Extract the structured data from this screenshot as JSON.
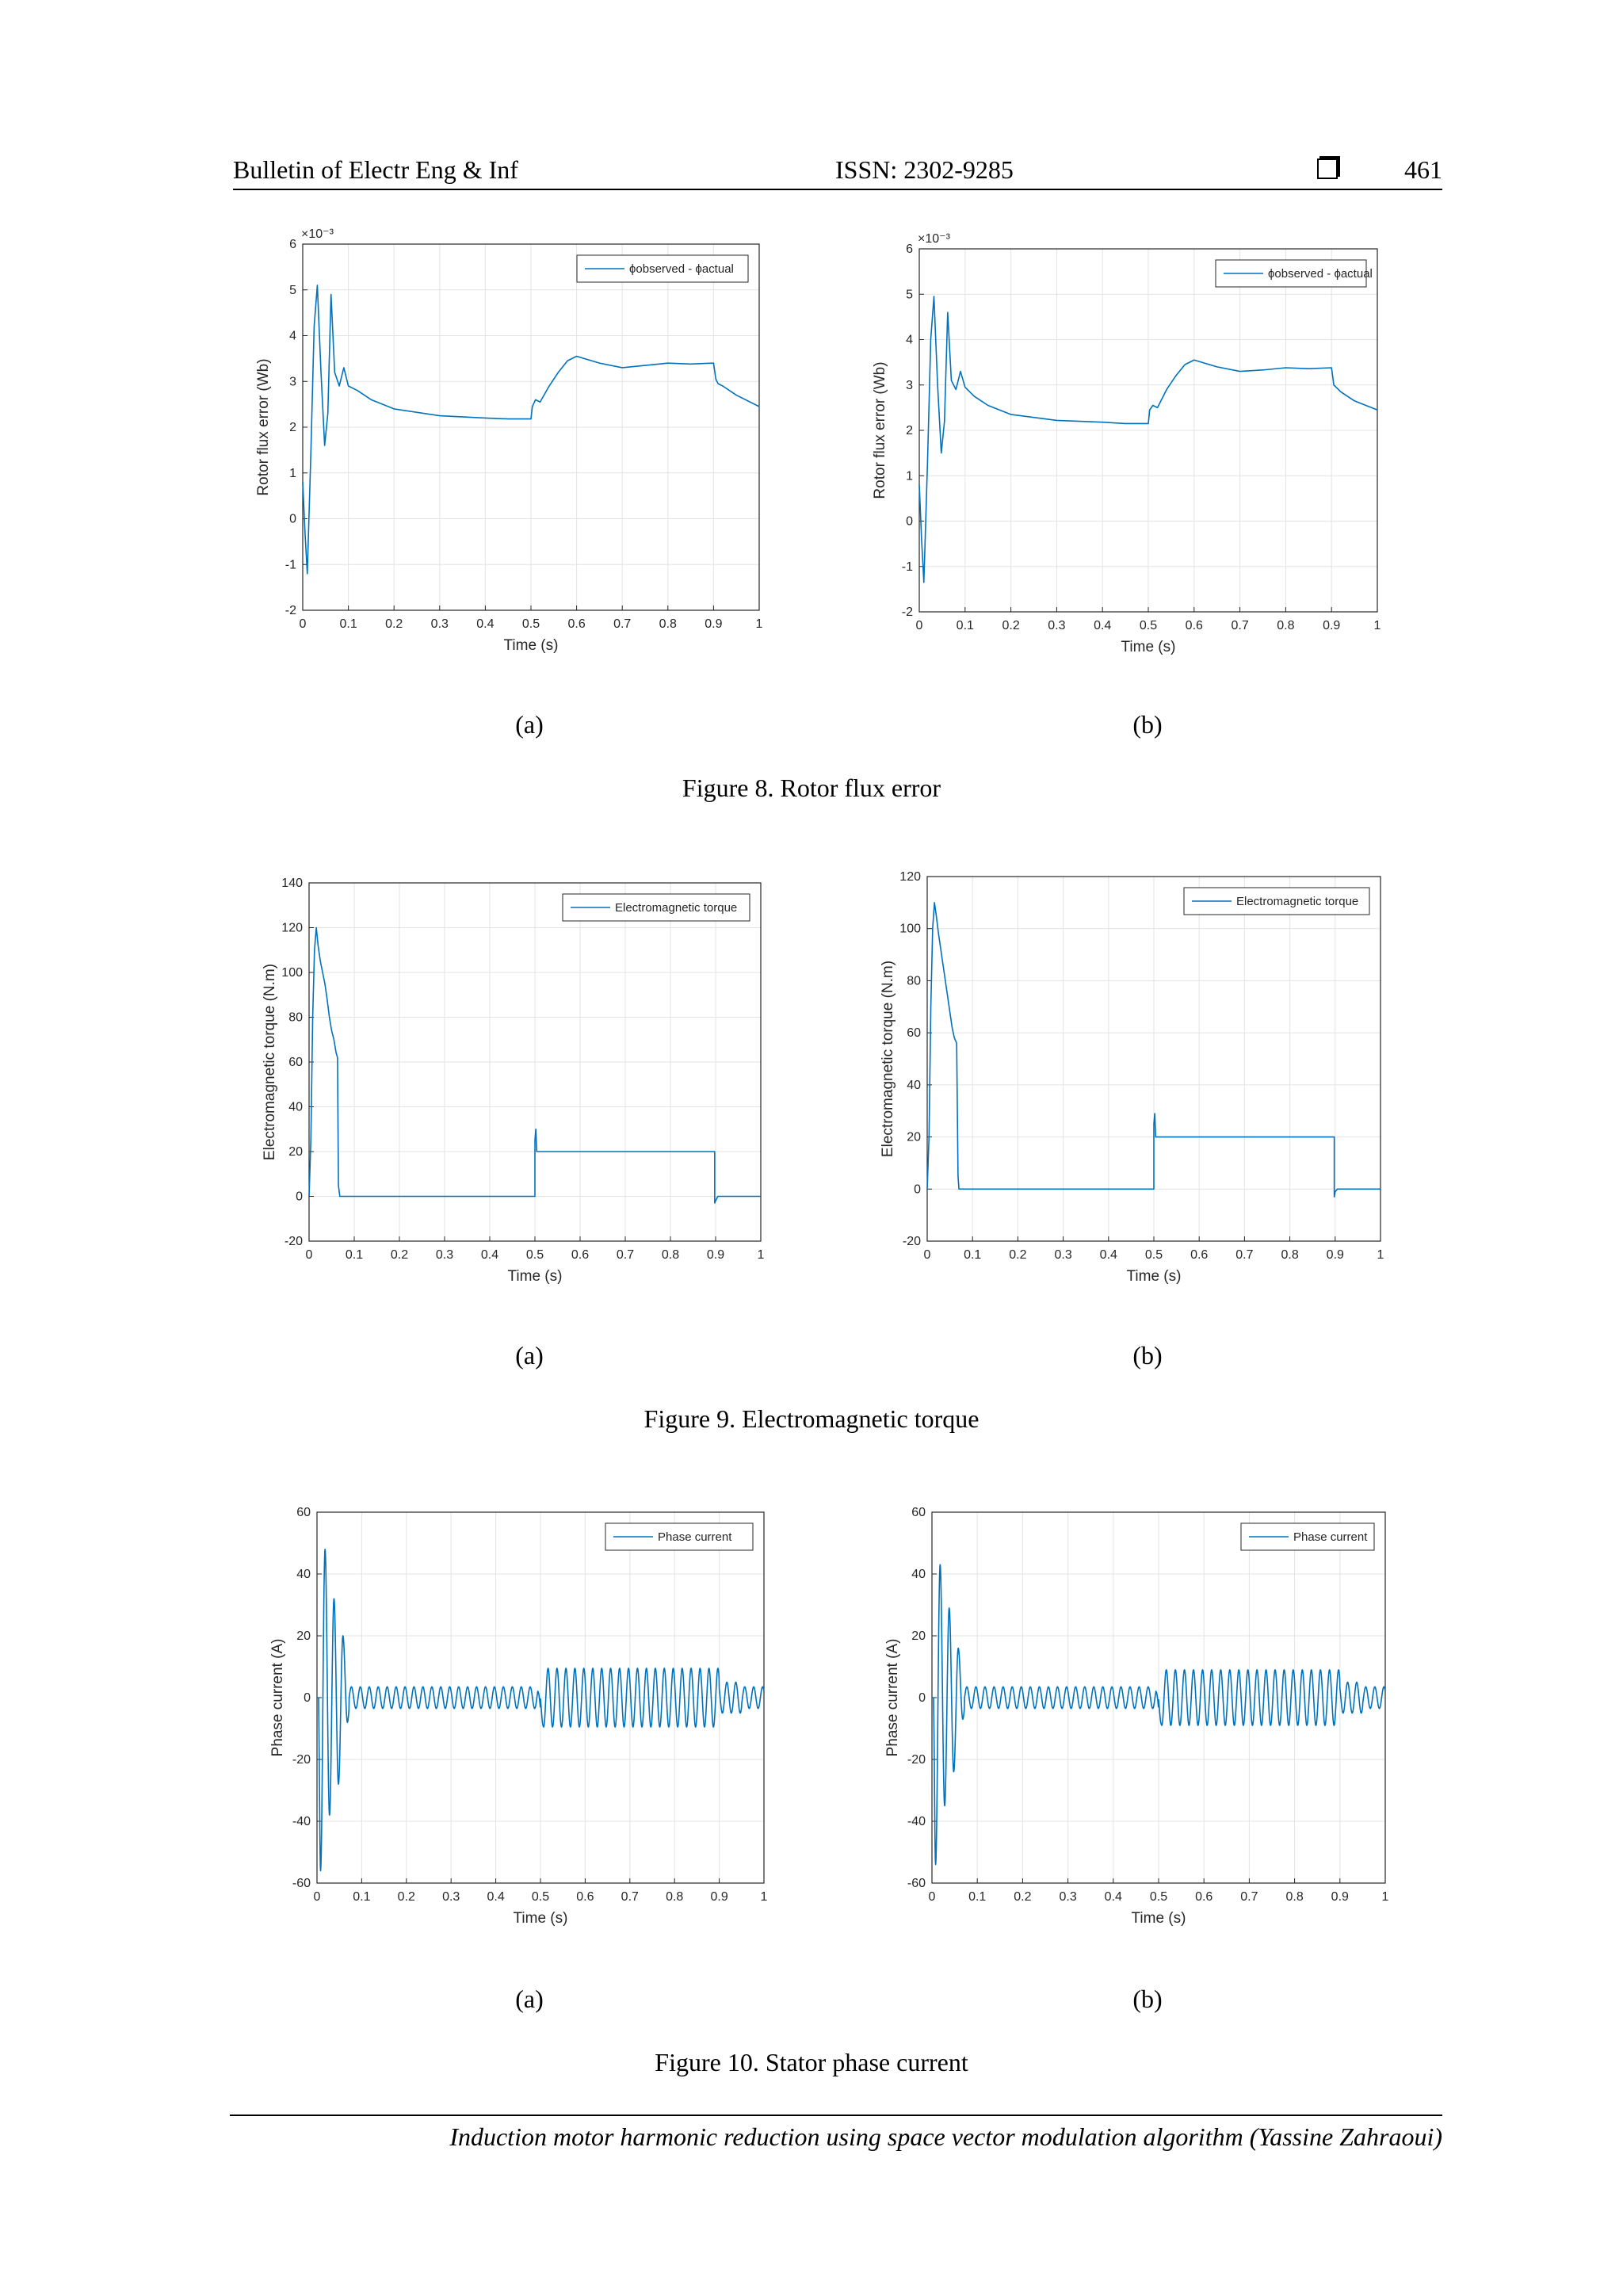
{
  "header": {
    "journal": "Bulletin of Electr Eng & Inf",
    "issn": "ISSN: 2302-9285",
    "page": "461"
  },
  "footer": {
    "text": "Induction motor harmonic reduction using space vector modulation algorithm (Yassine Zahraoui)"
  },
  "figures": [
    {
      "caption": "Figure 8. Rotor flux error",
      "sub_a": "(a)",
      "sub_b": "(b)"
    },
    {
      "caption": "Figure 9. Electromagnetic torque",
      "sub_a": "(a)",
      "sub_b": "(b)"
    },
    {
      "caption": "Figure 10. Stator phase current",
      "sub_a": "(a)",
      "sub_b": "(b)"
    }
  ],
  "colors": {
    "line": "#0072BD",
    "grid": "#e3e3e3",
    "axis": "#262626"
  },
  "chart_data": [
    {
      "id": "fig8a",
      "type": "line",
      "xlabel": "Time (s)",
      "ylabel": "Rotor flux error (Wb)",
      "xlim": [
        0,
        1
      ],
      "ylim": [
        -2,
        6
      ],
      "y_multiplier": "×10⁻³",
      "legend": "ϕobserved - ϕactual",
      "legend_loc": "top-right",
      "x_ticks": [
        "0",
        "0.1",
        "0.2",
        "0.3",
        "0.4",
        "0.5",
        "0.6",
        "0.7",
        "0.8",
        "0.9",
        "1"
      ],
      "y_ticks": [
        "-2",
        "-1",
        "0",
        "1",
        "2",
        "3",
        "4",
        "5",
        "6"
      ],
      "x": [
        0,
        0.005,
        0.01,
        0.018,
        0.025,
        0.032,
        0.04,
        0.048,
        0.055,
        0.062,
        0.07,
        0.08,
        0.09,
        0.1,
        0.12,
        0.15,
        0.2,
        0.3,
        0.4,
        0.45,
        0.5,
        0.503,
        0.51,
        0.52,
        0.54,
        0.56,
        0.58,
        0.6,
        0.65,
        0.7,
        0.75,
        0.8,
        0.85,
        0.9,
        0.905,
        0.91,
        0.92,
        0.95,
        1
      ],
      "y": [
        0.8,
        -0.3,
        -1.2,
        1.5,
        4.2,
        5.1,
        3.2,
        1.6,
        2.3,
        4.9,
        3.2,
        2.9,
        3.3,
        2.9,
        2.8,
        2.6,
        2.4,
        2.25,
        2.2,
        2.18,
        2.18,
        2.45,
        2.6,
        2.55,
        2.9,
        3.2,
        3.45,
        3.55,
        3.4,
        3.3,
        3.35,
        3.4,
        3.38,
        3.4,
        3.05,
        2.95,
        2.9,
        2.7,
        2.45
      ]
    },
    {
      "id": "fig8b",
      "type": "line",
      "xlabel": "Time (s)",
      "ylabel": "Rotor flux error (Wb)",
      "xlim": [
        0,
        1
      ],
      "ylim": [
        -2,
        6
      ],
      "y_multiplier": "×10⁻³",
      "legend": "ϕobserved - ϕactual",
      "legend_loc": "top-right",
      "x_ticks": [
        "0",
        "0.1",
        "0.2",
        "0.3",
        "0.4",
        "0.5",
        "0.6",
        "0.7",
        "0.8",
        "0.9",
        "1"
      ],
      "y_ticks": [
        "-2",
        "-1",
        "0",
        "1",
        "2",
        "3",
        "4",
        "5",
        "6"
      ],
      "x": [
        0,
        0.005,
        0.01,
        0.018,
        0.025,
        0.032,
        0.04,
        0.048,
        0.055,
        0.062,
        0.07,
        0.08,
        0.09,
        0.1,
        0.12,
        0.15,
        0.2,
        0.3,
        0.4,
        0.45,
        0.5,
        0.503,
        0.51,
        0.52,
        0.54,
        0.56,
        0.58,
        0.6,
        0.65,
        0.7,
        0.75,
        0.8,
        0.85,
        0.9,
        0.905,
        0.91,
        0.92,
        0.95,
        1
      ],
      "y": [
        0.8,
        -0.4,
        -1.35,
        1.3,
        4.0,
        4.95,
        3.0,
        1.5,
        2.2,
        4.6,
        3.1,
        2.9,
        3.3,
        2.95,
        2.75,
        2.55,
        2.35,
        2.22,
        2.18,
        2.15,
        2.15,
        2.45,
        2.55,
        2.5,
        2.9,
        3.2,
        3.45,
        3.55,
        3.4,
        3.3,
        3.33,
        3.38,
        3.36,
        3.38,
        3.0,
        2.95,
        2.85,
        2.65,
        2.45
      ]
    },
    {
      "id": "fig9a",
      "type": "line",
      "xlabel": "Time (s)",
      "ylabel": "Electromagnetic torque (N.m)",
      "xlim": [
        0,
        1
      ],
      "ylim": [
        -20,
        140
      ],
      "legend": "Electromagnetic torque",
      "legend_loc": "top-right",
      "x_ticks": [
        "0",
        "0.1",
        "0.2",
        "0.3",
        "0.4",
        "0.5",
        "0.6",
        "0.7",
        "0.8",
        "0.9",
        "1"
      ],
      "y_ticks": [
        "-20",
        "0",
        "20",
        "40",
        "60",
        "80",
        "100",
        "120",
        "140"
      ],
      "x": [
        0,
        0.004,
        0.008,
        0.012,
        0.016,
        0.02,
        0.025,
        0.03,
        0.035,
        0.04,
        0.045,
        0.05,
        0.055,
        0.06,
        0.063,
        0.065,
        0.068,
        0.1,
        0.3,
        0.5,
        0.5,
        0.502,
        0.504,
        0.51,
        0.6,
        0.7,
        0.8,
        0.898,
        0.898,
        0.9,
        0.905,
        1
      ],
      "y": [
        0,
        25,
        80,
        110,
        120,
        112,
        105,
        100,
        95,
        88,
        80,
        74,
        70,
        64,
        62,
        5,
        0,
        0,
        0,
        0,
        25,
        30,
        20,
        20,
        20,
        20,
        20,
        20,
        -3,
        -2,
        0,
        0
      ]
    },
    {
      "id": "fig9b",
      "type": "line",
      "xlabel": "Time (s)",
      "ylabel": "Electromagnetic torque (N.m)",
      "xlim": [
        0,
        1
      ],
      "ylim": [
        -20,
        120
      ],
      "legend": "Electromagnetic torque",
      "legend_loc": "top-right",
      "x_ticks": [
        "0",
        "0.1",
        "0.2",
        "0.3",
        "0.4",
        "0.5",
        "0.6",
        "0.7",
        "0.8",
        "0.9",
        "1"
      ],
      "y_ticks": [
        "-20",
        "0",
        "20",
        "40",
        "60",
        "80",
        "100",
        "120"
      ],
      "x": [
        0,
        0.004,
        0.008,
        0.012,
        0.016,
        0.02,
        0.025,
        0.03,
        0.035,
        0.04,
        0.045,
        0.05,
        0.055,
        0.06,
        0.065,
        0.068,
        0.07,
        0.1,
        0.3,
        0.5,
        0.5,
        0.502,
        0.504,
        0.51,
        0.6,
        0.7,
        0.8,
        0.898,
        0.898,
        0.9,
        0.905,
        1
      ],
      "y": [
        0,
        20,
        70,
        100,
        110,
        105,
        98,
        92,
        86,
        80,
        74,
        68,
        62,
        58,
        56,
        5,
        0,
        0,
        0,
        0,
        25,
        29,
        20,
        20,
        20,
        20,
        20,
        20,
        -3,
        -1,
        0,
        0
      ]
    },
    {
      "id": "fig10a",
      "type": "line",
      "xlabel": "Time (s)",
      "ylabel": "Phase current (A)",
      "xlim": [
        0,
        1
      ],
      "ylim": [
        -60,
        60
      ],
      "legend": "Phase current",
      "legend_loc": "top-right",
      "x_ticks": [
        "0",
        "0.1",
        "0.2",
        "0.3",
        "0.4",
        "0.5",
        "0.6",
        "0.7",
        "0.8",
        "0.9",
        "1"
      ],
      "y_ticks": [
        "-60",
        "-40",
        "-20",
        "0",
        "20",
        "40",
        "60"
      ],
      "signal": {
        "period": 0.02,
        "onsets": [
          [
            0.008,
            -56
          ],
          [
            0.018,
            48
          ],
          [
            0.028,
            -38
          ],
          [
            0.038,
            32
          ],
          [
            0.048,
            -28
          ],
          [
            0.058,
            20
          ],
          [
            0.068,
            -8
          ]
        ],
        "amp_low": 3.5,
        "amp_high": 9.5,
        "t_high_start": 0.5,
        "t_high_end": 0.9,
        "n": 2000
      }
    },
    {
      "id": "fig10b",
      "type": "line",
      "xlabel": "Time (s)",
      "ylabel": "Phase current (A)",
      "xlim": [
        0,
        1
      ],
      "ylim": [
        -60,
        60
      ],
      "legend": "Phase current",
      "legend_loc": "top-right",
      "x_ticks": [
        "0",
        "0.1",
        "0.2",
        "0.3",
        "0.4",
        "0.5",
        "0.6",
        "0.7",
        "0.8",
        "0.9",
        "1"
      ],
      "y_ticks": [
        "-60",
        "-40",
        "-20",
        "0",
        "20",
        "40",
        "60"
      ],
      "signal": {
        "period": 0.02,
        "onsets": [
          [
            0.008,
            -54
          ],
          [
            0.018,
            43
          ],
          [
            0.028,
            -35
          ],
          [
            0.038,
            29
          ],
          [
            0.048,
            -24
          ],
          [
            0.058,
            16
          ],
          [
            0.068,
            -7
          ]
        ],
        "amp_low": 3.5,
        "amp_high": 9.0,
        "t_high_start": 0.5,
        "t_high_end": 0.9,
        "n": 2000
      }
    }
  ]
}
